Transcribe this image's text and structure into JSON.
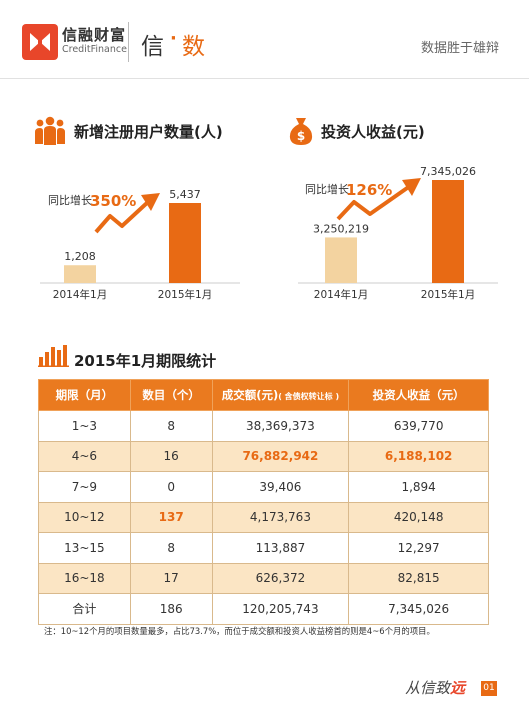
{
  "header": {
    "brand_cn": "信融财富",
    "brand_en": "CreditFinance",
    "title_left": "信",
    "title_sep": "·",
    "title_right": "数",
    "slogan": "数据胜于雄辩"
  },
  "colors": {
    "accent": "#e86a14",
    "light": "#f3d3a0",
    "table_alt": "#fbe5c4"
  },
  "icons": {
    "users": "three-people-icon",
    "money": "money-bag-icon",
    "stats": "bar-stats-icon"
  },
  "chart_data": [
    {
      "type": "bar",
      "title": "新增注册用户数量(人)",
      "categories": [
        "2014年1月",
        "2015年1月"
      ],
      "values": [
        1208,
        5437
      ],
      "value_labels": [
        "1,208",
        "5,437"
      ],
      "annotation_prefix": "同比增长",
      "annotation_value": "350%"
    },
    {
      "type": "bar",
      "title": "投资人收益(元)",
      "categories": [
        "2014年1月",
        "2015年1月"
      ],
      "values": [
        3250219,
        7345026
      ],
      "value_labels": [
        "3,250,219",
        "7,345,026"
      ],
      "annotation_prefix": "同比增长",
      "annotation_value": "126%"
    },
    {
      "type": "table",
      "title": "2015年1月期限统计",
      "headers": [
        "期限（月）",
        "数目（个）",
        "成交额(元)",
        "投资人收益（元）"
      ],
      "header_note": "( 含债权转让标 )",
      "rows": [
        [
          "1~3",
          "8",
          "38,369,373",
          "639,770"
        ],
        [
          "4~6",
          "16",
          "76,882,942",
          "6,188,102"
        ],
        [
          "7~9",
          "0",
          "39,406",
          "1,894"
        ],
        [
          "10~12",
          "137",
          "4,173,763",
          "420,148"
        ],
        [
          "13~15",
          "8",
          "113,887",
          "12,297"
        ],
        [
          "16~18",
          "17",
          "626,372",
          "82,815"
        ],
        [
          "合计",
          "186",
          "120,205,743",
          "7,345,026"
        ]
      ]
    }
  ],
  "note": "注：10~12个月的项目数量最多，占比73.7%，而位于成交额和投资人收益榜首的则是4~6个月的项目。",
  "footer": {
    "signature": "从信致",
    "signature_accent": "远",
    "page": "01"
  }
}
